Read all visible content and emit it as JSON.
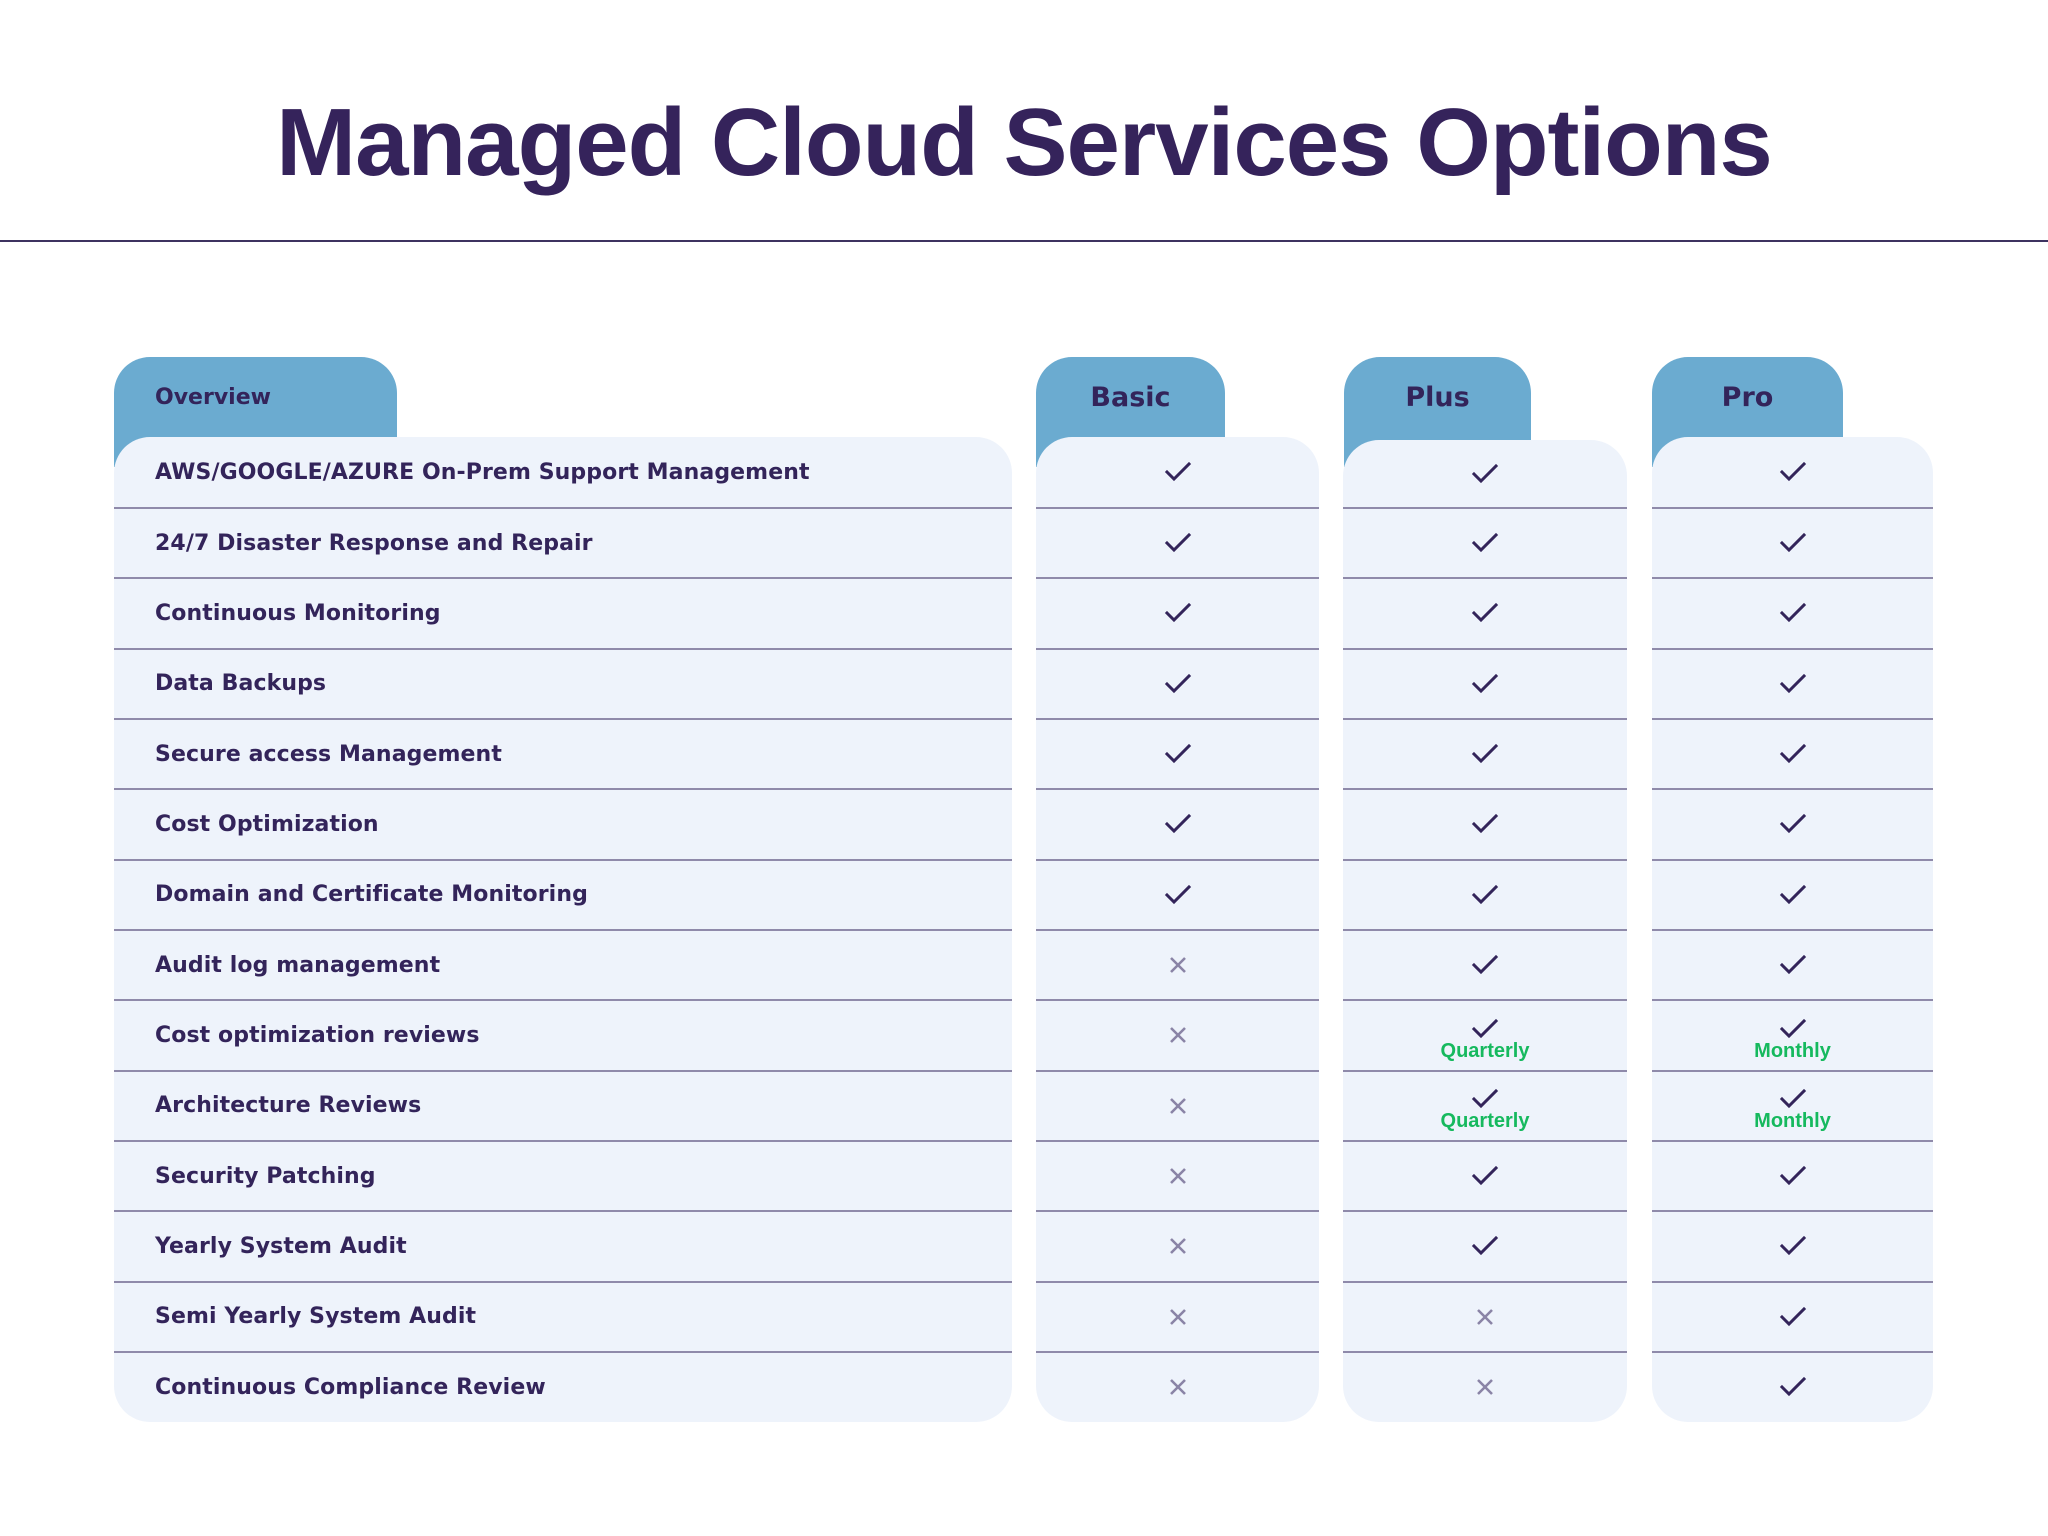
{
  "page": {
    "title": "Managed Cloud Services Options"
  },
  "colors": {
    "title": "#35235b",
    "tab": "#6babd0",
    "card": "#eef3fb",
    "divider": "#8f8aaa",
    "check": "#33245a",
    "cross": "#8a84a6",
    "note": "#16b95e"
  },
  "header": {
    "overview": "Overview",
    "plans": [
      "Basic",
      "Plus",
      "Pro"
    ]
  },
  "features": [
    {
      "label": "AWS/GOOGLE/AZURE On-Prem Support Management",
      "basic": "check",
      "plus": "check",
      "pro": "check"
    },
    {
      "label": "24/7 Disaster Response and Repair",
      "basic": "check",
      "plus": "check",
      "pro": "check"
    },
    {
      "label": "Continuous Monitoring",
      "basic": "check",
      "plus": "check",
      "pro": "check"
    },
    {
      "label": "Data Backups",
      "basic": "check",
      "plus": "check",
      "pro": "check"
    },
    {
      "label": "Secure access Management",
      "basic": "check",
      "plus": "check",
      "pro": "check"
    },
    {
      "label": "Cost Optimization",
      "basic": "check",
      "plus": "check",
      "pro": "check"
    },
    {
      "label": "Domain and Certificate Monitoring",
      "basic": "check",
      "plus": "check",
      "pro": "check"
    },
    {
      "label": "Audit log management",
      "basic": "cross",
      "plus": "check",
      "pro": "check"
    },
    {
      "label": "Cost optimization reviews",
      "basic": "cross",
      "plus": "check",
      "plus_note": "Quarterly",
      "pro": "check",
      "pro_note": "Monthly"
    },
    {
      "label": "Architecture Reviews",
      "basic": "cross",
      "plus": "check",
      "plus_note": "Quarterly",
      "pro": "check",
      "pro_note": "Monthly"
    },
    {
      "label": "Security Patching",
      "basic": "cross",
      "plus": "check",
      "pro": "check"
    },
    {
      "label": "Yearly System Audit",
      "basic": "cross",
      "plus": "check",
      "pro": "check"
    },
    {
      "label": "Semi Yearly System Audit",
      "basic": "cross",
      "plus": "cross",
      "pro": "check"
    },
    {
      "label": "Continuous Compliance Review",
      "basic": "cross",
      "plus": "cross",
      "pro": "check"
    }
  ]
}
